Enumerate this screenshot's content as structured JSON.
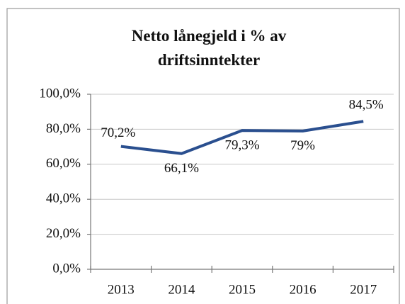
{
  "chart_data": {
    "type": "line",
    "title": "Netto lånegjeld i % av driftsinntekter",
    "categories": [
      "2013",
      "2014",
      "2015",
      "2016",
      "2017"
    ],
    "values": [
      70.2,
      66.1,
      79.3,
      79,
      84.5
    ],
    "value_labels": [
      "70,2%",
      "66,1%",
      "79,3%",
      "79%",
      "84,5%"
    ],
    "color": "#2a4f8f",
    "ylim": [
      0,
      100
    ],
    "yticks": [
      {
        "value": 0,
        "label": "0,0%"
      },
      {
        "value": 20,
        "label": "20,0%"
      },
      {
        "value": 40,
        "label": "40,0%"
      },
      {
        "value": 60,
        "label": "60,0%"
      },
      {
        "value": 80,
        "label": "80,0%"
      },
      {
        "value": 100,
        "label": "100,0%"
      }
    ],
    "grid": true
  }
}
